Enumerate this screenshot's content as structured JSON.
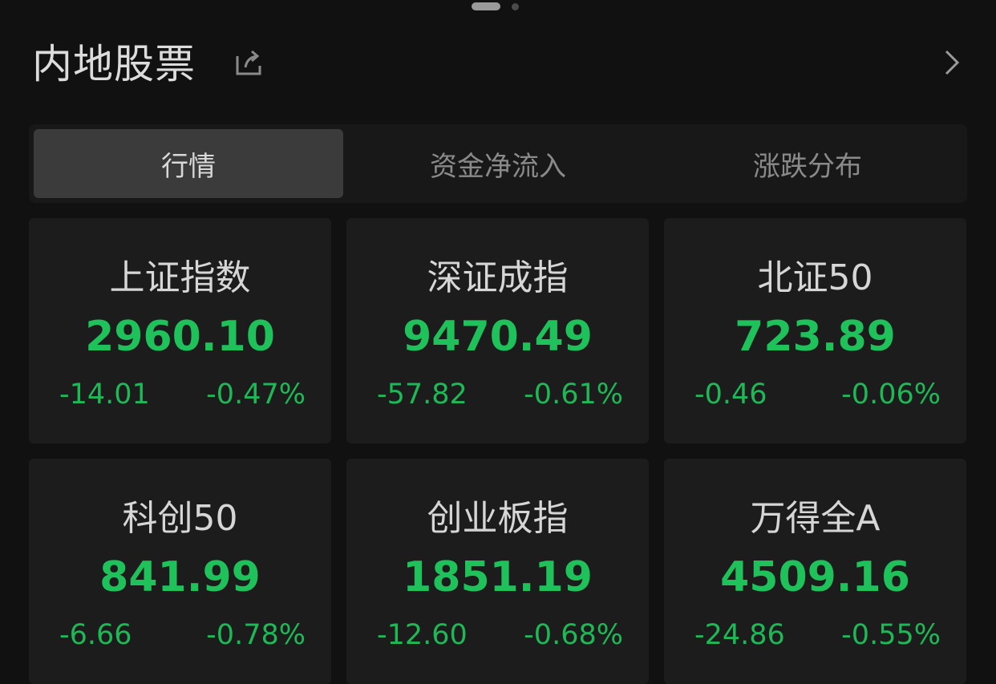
{
  "header": {
    "title": "内地股票",
    "share_icon": "share-icon",
    "more_icon": "chevron-right-icon"
  },
  "tabs": [
    {
      "label": "行情",
      "active": true
    },
    {
      "label": "资金净流入"
    },
    {
      "label": "涨跌分布"
    }
  ],
  "colors": {
    "down": "#1fc15b",
    "background": "#111111",
    "card": "#1c1c1c"
  },
  "indices": [
    {
      "name": "上证指数",
      "value": "2960.10",
      "change": "-14.01",
      "pct": "-0.47%"
    },
    {
      "name": "深证成指",
      "value": "9470.49",
      "change": "-57.82",
      "pct": "-0.61%"
    },
    {
      "name": "北证50",
      "value": "723.89",
      "change": "-0.46",
      "pct": "-0.06%"
    },
    {
      "name": "科创50",
      "value": "841.99",
      "change": "-6.66",
      "pct": "-0.78%"
    },
    {
      "name": "创业板指",
      "value": "1851.19",
      "change": "-12.60",
      "pct": "-0.68%"
    },
    {
      "name": "万得全A",
      "value": "4509.16",
      "change": "-24.86",
      "pct": "-0.55%"
    }
  ]
}
